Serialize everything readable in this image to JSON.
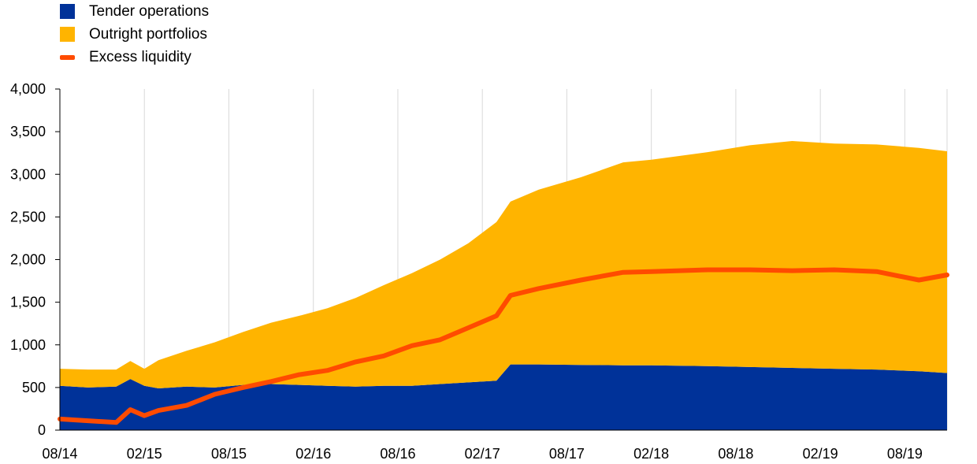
{
  "chart_data": {
    "type": "area",
    "title": "",
    "xlabel": "",
    "ylabel": "",
    "ylim": [
      0,
      4000
    ],
    "yticks": [
      0,
      500,
      1000,
      1500,
      2000,
      2500,
      3000,
      3500,
      4000
    ],
    "ytick_labels": [
      "0",
      "500",
      "1,000",
      "1,500",
      "2,000",
      "2,500",
      "3,000",
      "3,500",
      "4,000"
    ],
    "x_start": "2014-08",
    "x_end": "2019-11",
    "xtick_labels": [
      "08/14",
      "02/15",
      "08/15",
      "02/16",
      "08/16",
      "02/17",
      "08/17",
      "02/18",
      "08/18",
      "02/19",
      "08/19"
    ],
    "grid": "vertical",
    "legend_position": "top-left",
    "series": [
      {
        "name": "Tender operations",
        "kind": "stacked-area",
        "color": "#003299",
        "dates": [
          "2014-08",
          "2014-10",
          "2014-12",
          "2015-01",
          "2015-02",
          "2015-03",
          "2015-05",
          "2015-07",
          "2015-09",
          "2015-11",
          "2016-01",
          "2016-03",
          "2016-05",
          "2016-07",
          "2016-09",
          "2016-11",
          "2017-01",
          "2017-03",
          "2017-04",
          "2017-06",
          "2017-09",
          "2017-12",
          "2018-02",
          "2018-06",
          "2018-09",
          "2018-12",
          "2019-03",
          "2019-06",
          "2019-09",
          "2019-11"
        ],
        "values": [
          520,
          500,
          510,
          600,
          520,
          490,
          510,
          500,
          530,
          540,
          530,
          520,
          510,
          520,
          520,
          540,
          560,
          580,
          770,
          770,
          765,
          760,
          760,
          750,
          740,
          730,
          720,
          710,
          690,
          670
        ]
      },
      {
        "name": "Outright portfolios",
        "kind": "stacked-area",
        "color": "#FFB400",
        "dates": [
          "2014-08",
          "2014-10",
          "2014-12",
          "2015-01",
          "2015-02",
          "2015-03",
          "2015-05",
          "2015-07",
          "2015-09",
          "2015-11",
          "2016-01",
          "2016-03",
          "2016-05",
          "2016-07",
          "2016-09",
          "2016-11",
          "2017-01",
          "2017-03",
          "2017-04",
          "2017-06",
          "2017-09",
          "2017-12",
          "2018-02",
          "2018-06",
          "2018-09",
          "2018-12",
          "2019-03",
          "2019-06",
          "2019-09",
          "2019-11"
        ],
        "values": [
          200,
          210,
          200,
          210,
          200,
          330,
          420,
          530,
          620,
          720,
          810,
          910,
          1040,
          1180,
          1320,
          1460,
          1630,
          1860,
          1910,
          2050,
          2200,
          2380,
          2410,
          2510,
          2600,
          2660,
          2640,
          2640,
          2620,
          2600
        ]
      },
      {
        "name": "Excess liquidity",
        "kind": "line",
        "color": "#FF4B00",
        "dates": [
          "2014-08",
          "2014-10",
          "2014-12",
          "2015-01",
          "2015-02",
          "2015-03",
          "2015-05",
          "2015-07",
          "2015-09",
          "2015-11",
          "2016-01",
          "2016-03",
          "2016-05",
          "2016-07",
          "2016-09",
          "2016-11",
          "2017-01",
          "2017-03",
          "2017-04",
          "2017-06",
          "2017-09",
          "2017-12",
          "2018-02",
          "2018-06",
          "2018-09",
          "2018-12",
          "2019-03",
          "2019-06",
          "2019-09",
          "2019-11"
        ],
        "values": [
          130,
          110,
          90,
          240,
          170,
          230,
          290,
          420,
          500,
          570,
          650,
          700,
          800,
          870,
          990,
          1060,
          1200,
          1340,
          1580,
          1660,
          1760,
          1850,
          1860,
          1880,
          1880,
          1870,
          1880,
          1860,
          1760,
          1820
        ]
      }
    ]
  }
}
